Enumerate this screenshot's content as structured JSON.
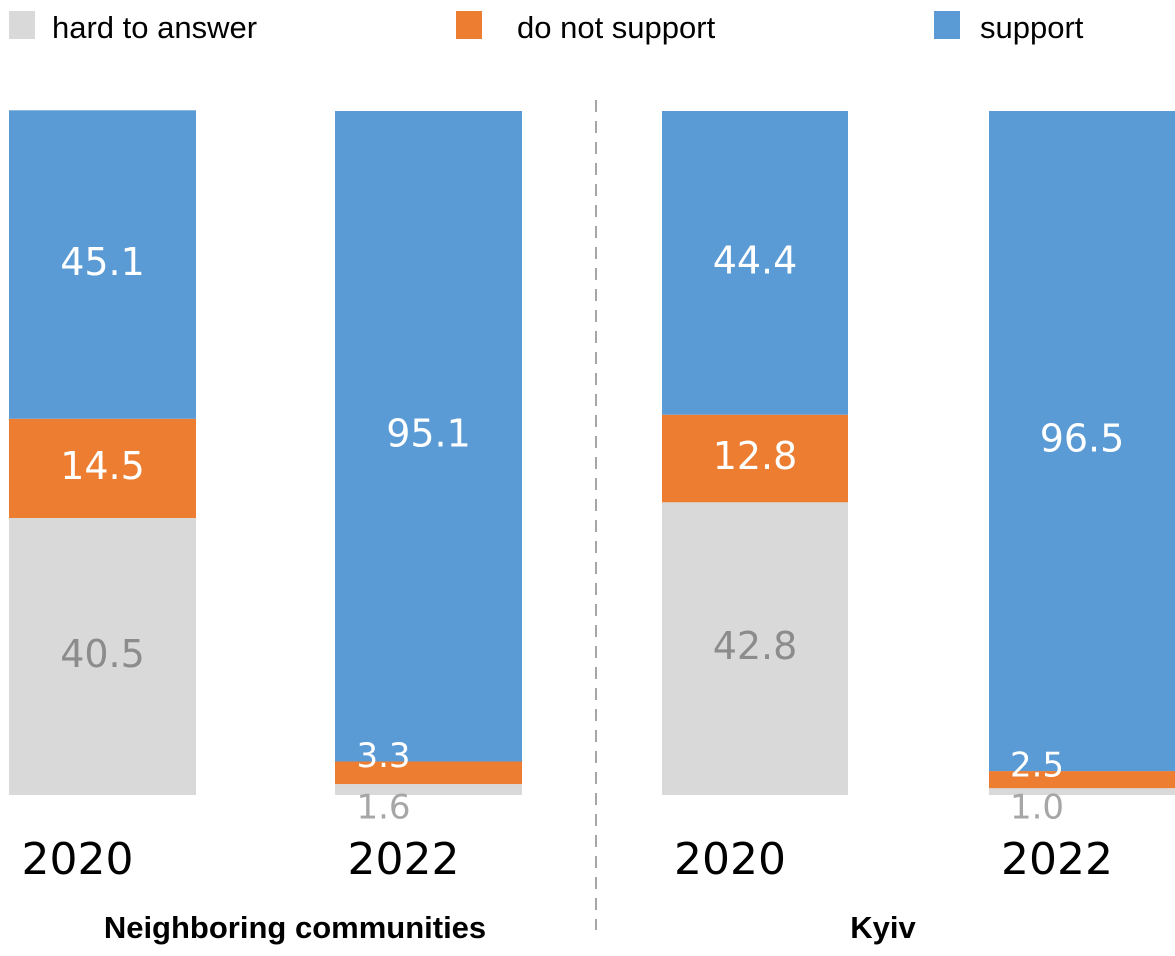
{
  "chart_data": {
    "type": "bar",
    "stacked": true,
    "legend": [
      {
        "name": "hard to answer",
        "color": "#d9d9d9"
      },
      {
        "name": "do not support",
        "color": "#ed7d31"
      },
      {
        "name": "support",
        "color": "#5b9bd5"
      }
    ],
    "groups": [
      {
        "label": "Neighboring communities",
        "bars": [
          {
            "year": "2020",
            "hard_to_answer": 40.5,
            "do_not_support": 14.5,
            "support": 45.1
          },
          {
            "year": "2022",
            "hard_to_answer": 1.6,
            "do_not_support": 3.3,
            "support": 95.1
          }
        ]
      },
      {
        "label": "Kyiv",
        "bars": [
          {
            "year": "2020",
            "hard_to_answer": 42.8,
            "do_not_support": 12.8,
            "support": 44.4
          },
          {
            "year": "2022",
            "hard_to_answer": 1.0,
            "do_not_support": 2.5,
            "support": 96.5
          }
        ]
      }
    ],
    "ylim": [
      0,
      100
    ],
    "grid": false,
    "legend_placement": "top"
  }
}
